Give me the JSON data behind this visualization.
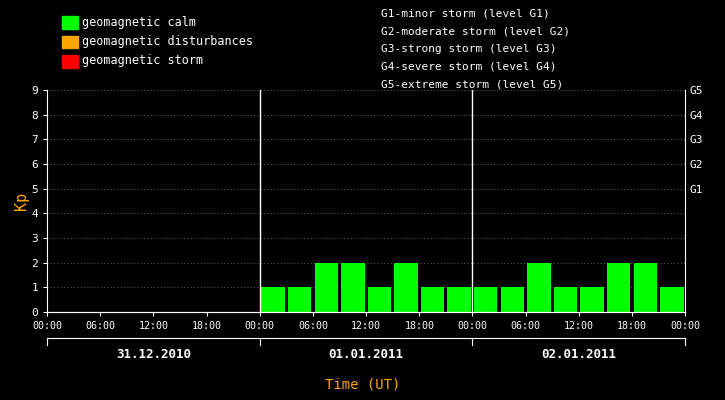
{
  "background_color": "#000000",
  "text_color": "#ffffff",
  "orange_color": "#ffa500",
  "bar_color": "#00ff00",
  "axis_color": "#ffffff",
  "days": [
    "31.12.2010",
    "01.01.2011",
    "02.01.2011"
  ],
  "kp_values_day1": [
    0,
    0,
    0,
    0,
    0,
    0,
    0,
    0
  ],
  "kp_values_day2": [
    1,
    1,
    2,
    2,
    1,
    2,
    1,
    1
  ],
  "kp_values_day3": [
    1,
    1,
    2,
    1,
    1,
    2,
    2,
    1
  ],
  "ylim": [
    0,
    9
  ],
  "yticks": [
    0,
    1,
    2,
    3,
    4,
    5,
    6,
    7,
    8,
    9
  ],
  "ylabel": "Kp",
  "xlabel": "Time (UT)",
  "xtick_labels": [
    "00:00",
    "06:00",
    "12:00",
    "18:00",
    "00:00",
    "06:00",
    "12:00",
    "18:00",
    "00:00",
    "06:00",
    "12:00",
    "18:00",
    "00:00"
  ],
  "right_labels": [
    "G5",
    "G4",
    "G3",
    "G2",
    "G1"
  ],
  "right_label_yvals": [
    9,
    8,
    7,
    6,
    5
  ],
  "legend_items": [
    {
      "color": "#00ff00",
      "label": "geomagnetic calm"
    },
    {
      "color": "#ffa500",
      "label": "geomagnetic disturbances"
    },
    {
      "color": "#ff0000",
      "label": "geomagnetic storm"
    }
  ],
  "storm_legend": [
    "G1-minor storm (level G1)",
    "G2-moderate storm (level G2)",
    "G3-strong storm (level G3)",
    "G4-severe storm (level G4)",
    "G5-extreme storm (level G5)"
  ],
  "vline_color": "#ffffff",
  "legend_square_size": 12,
  "legend_fontsize": 8.5,
  "storm_fontsize": 8.0,
  "axis_fontsize": 8,
  "bar_width": 0.88
}
